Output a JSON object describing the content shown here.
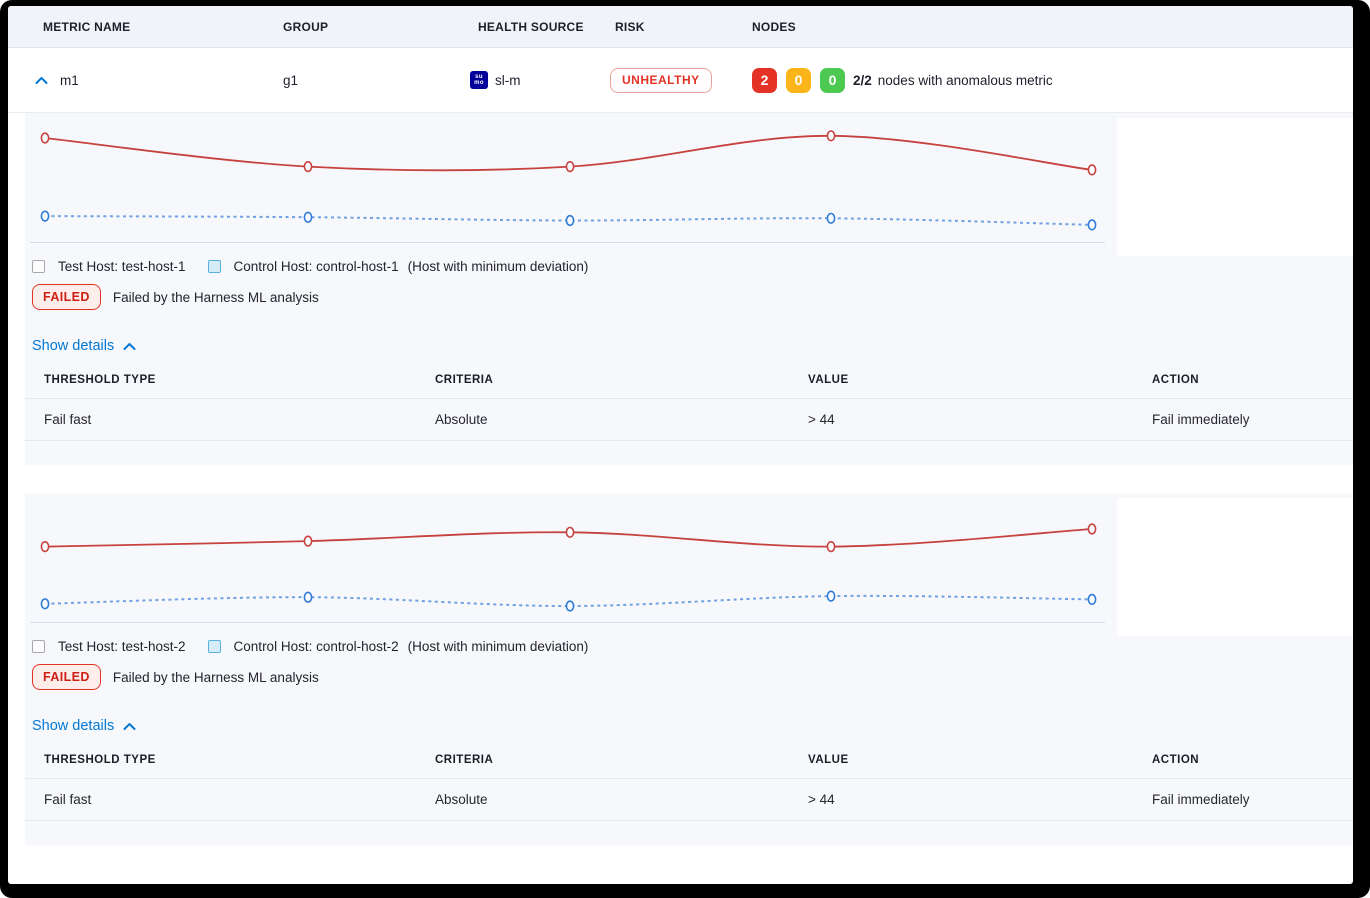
{
  "header": {
    "columns": [
      "METRIC NAME",
      "GROUP",
      "HEALTH SOURCE",
      "RISK",
      "NODES"
    ]
  },
  "metric_row": {
    "name": "m1",
    "group": "g1",
    "health_source": {
      "label": "sl-m",
      "icon_line1": "su",
      "icon_line2": "mo"
    },
    "risk": "UNHEALTHY",
    "nodes": {
      "critical_count": "2",
      "warning_count": "0",
      "healthy_count": "0",
      "ratio": "2/2",
      "caption": "nodes with anomalous metric"
    }
  },
  "sections": [
    {
      "legend": {
        "test": "Test Host: test-host-1",
        "control": "Control Host: control-host-1",
        "note": "(Host with minimum deviation)"
      },
      "status": {
        "badge": "FAILED",
        "message": "Failed by the Harness ML analysis"
      },
      "details_link": "Show details",
      "table": {
        "headers": [
          "THRESHOLD TYPE",
          "CRITERIA",
          "VALUE",
          "ACTION"
        ],
        "rows": [
          [
            "Fail fast",
            "Absolute",
            "> 44",
            "Fail immediately"
          ]
        ]
      }
    },
    {
      "legend": {
        "test": "Test Host: test-host-2",
        "control": "Control Host: control-host-2",
        "note": "(Host with minimum deviation)"
      },
      "status": {
        "badge": "FAILED",
        "message": "Failed by the Harness ML analysis"
      },
      "details_link": "Show details",
      "table": {
        "headers": [
          "THRESHOLD TYPE",
          "CRITERIA",
          "VALUE",
          "ACTION"
        ],
        "rows": [
          [
            "Fail fast",
            "Absolute",
            "> 44",
            "Fail immediately"
          ]
        ]
      }
    }
  ],
  "colors": {
    "accent_blue": "#0278d5",
    "risk_red": "#e43326",
    "node_red": "#e43326",
    "node_yellow": "#fcb519",
    "node_green": "#4dc952",
    "chart_red": "#c6423e",
    "chart_blue_marker": "#2f7ad2",
    "chart_blue_line": "#6fa1e2",
    "axis_line": "#d9dce8",
    "panel_bg": "#f7f8fc",
    "header_bg": "#f2f3f9"
  },
  "chart_data": [
    {
      "type": "line",
      "x": [
        1,
        2,
        3,
        4,
        5
      ],
      "series": [
        {
          "name": "Test Host: test-host-1",
          "style": "solid",
          "color": "#c6423e",
          "values": [
            90,
            64,
            64,
            92,
            61
          ]
        },
        {
          "name": "Control Host: control-host-1",
          "style": "dashed",
          "color": "#2f7ad2",
          "line_color": "#6fa1e2",
          "values": [
            19,
            18,
            15,
            17,
            11
          ]
        }
      ],
      "title": "",
      "xlabel": "",
      "ylabel": "",
      "ylim": [
        0,
        100
      ],
      "grid": false,
      "axes_hidden": true,
      "legend_position": "below"
    },
    {
      "type": "line",
      "x": [
        1,
        2,
        3,
        4,
        5
      ],
      "series": [
        {
          "name": "Test Host: test-host-2",
          "style": "solid",
          "color": "#c6423e",
          "values": [
            64,
            69,
            77,
            64,
            80
          ]
        },
        {
          "name": "Control Host: control-host-2",
          "style": "dashed",
          "color": "#2f7ad2",
          "line_color": "#6fa1e2",
          "values": [
            12,
            18,
            10,
            19,
            16
          ]
        }
      ],
      "title": "",
      "xlabel": "",
      "ylabel": "",
      "ylim": [
        0,
        100
      ],
      "grid": false,
      "axes_hidden": true,
      "legend_position": "below"
    }
  ]
}
